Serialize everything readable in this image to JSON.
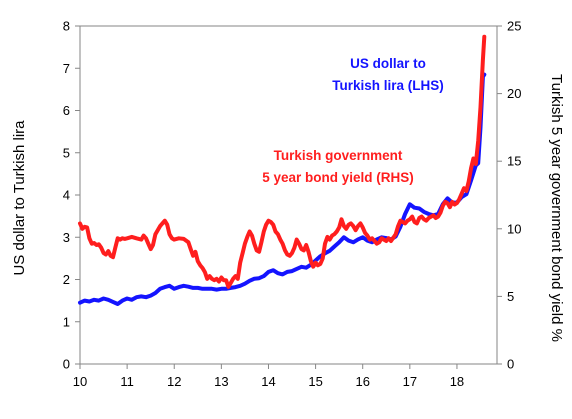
{
  "chart_data": {
    "type": "line",
    "title": "",
    "xlabel": "",
    "ylabel_left": "US dollar to Turkish lira",
    "ylabel_right": "Turkish 5 year government bond yield %",
    "xlim": [
      10,
      18.85
    ],
    "ylim_left": [
      0,
      8
    ],
    "ylim_right": [
      0,
      25
    ],
    "x_ticks": [
      "10",
      "11",
      "12",
      "13",
      "14",
      "15",
      "16",
      "17",
      "18"
    ],
    "y_left_ticks": [
      "0",
      "1",
      "2",
      "3",
      "4",
      "5",
      "6",
      "7",
      "8"
    ],
    "y_right_ticks": [
      "0",
      "5",
      "10",
      "15",
      "20",
      "25"
    ],
    "grid": false,
    "legend": "none",
    "annotations": [
      {
        "text": "US dollar to",
        "color": "#1414ff",
        "series": "usd_try"
      },
      {
        "text": "Turkish lira (LHS)",
        "color": "#1414ff",
        "series": "usd_try"
      },
      {
        "text": "Turkish  government",
        "color": "#ff1e1e",
        "series": "bond_yield"
      },
      {
        "text": "5 year bond yield  (RHS)",
        "color": "#ff1e1e",
        "series": "bond_yield"
      }
    ],
    "series": [
      {
        "key": "usd_try",
        "axis": "left",
        "color": "#1414ff",
        "points": [
          [
            10.0,
            1.45
          ],
          [
            10.1,
            1.5
          ],
          [
            10.2,
            1.48
          ],
          [
            10.3,
            1.52
          ],
          [
            10.4,
            1.5
          ],
          [
            10.5,
            1.55
          ],
          [
            10.6,
            1.52
          ],
          [
            10.7,
            1.47
          ],
          [
            10.8,
            1.42
          ],
          [
            10.9,
            1.5
          ],
          [
            11.0,
            1.55
          ],
          [
            11.1,
            1.52
          ],
          [
            11.2,
            1.58
          ],
          [
            11.3,
            1.6
          ],
          [
            11.4,
            1.58
          ],
          [
            11.5,
            1.62
          ],
          [
            11.6,
            1.68
          ],
          [
            11.7,
            1.78
          ],
          [
            11.8,
            1.82
          ],
          [
            11.9,
            1.85
          ],
          [
            12.0,
            1.78
          ],
          [
            12.1,
            1.82
          ],
          [
            12.2,
            1.85
          ],
          [
            12.3,
            1.83
          ],
          [
            12.4,
            1.8
          ],
          [
            12.5,
            1.8
          ],
          [
            12.6,
            1.78
          ],
          [
            12.7,
            1.78
          ],
          [
            12.8,
            1.78
          ],
          [
            12.9,
            1.76
          ],
          [
            13.0,
            1.78
          ],
          [
            13.1,
            1.78
          ],
          [
            13.2,
            1.8
          ],
          [
            13.3,
            1.82
          ],
          [
            13.4,
            1.85
          ],
          [
            13.5,
            1.9
          ],
          [
            13.6,
            1.97
          ],
          [
            13.7,
            2.02
          ],
          [
            13.8,
            2.03
          ],
          [
            13.9,
            2.08
          ],
          [
            14.0,
            2.18
          ],
          [
            14.1,
            2.22
          ],
          [
            14.2,
            2.15
          ],
          [
            14.3,
            2.12
          ],
          [
            14.4,
            2.18
          ],
          [
            14.5,
            2.2
          ],
          [
            14.6,
            2.25
          ],
          [
            14.7,
            2.3
          ],
          [
            14.8,
            2.28
          ],
          [
            14.9,
            2.35
          ],
          [
            15.0,
            2.45
          ],
          [
            15.1,
            2.55
          ],
          [
            15.2,
            2.62
          ],
          [
            15.3,
            2.68
          ],
          [
            15.4,
            2.78
          ],
          [
            15.5,
            2.88
          ],
          [
            15.6,
            3.0
          ],
          [
            15.7,
            2.92
          ],
          [
            15.8,
            2.88
          ],
          [
            15.9,
            2.95
          ],
          [
            16.0,
            3.0
          ],
          [
            16.1,
            2.92
          ],
          [
            16.2,
            2.88
          ],
          [
            16.3,
            2.95
          ],
          [
            16.4,
            3.0
          ],
          [
            16.5,
            2.98
          ],
          [
            16.6,
            2.95
          ],
          [
            16.7,
            3.02
          ],
          [
            16.8,
            3.25
          ],
          [
            16.9,
            3.55
          ],
          [
            17.0,
            3.78
          ],
          [
            17.1,
            3.7
          ],
          [
            17.2,
            3.68
          ],
          [
            17.3,
            3.6
          ],
          [
            17.4,
            3.55
          ],
          [
            17.5,
            3.52
          ],
          [
            17.6,
            3.55
          ],
          [
            17.7,
            3.78
          ],
          [
            17.8,
            3.92
          ],
          [
            17.9,
            3.82
          ],
          [
            18.0,
            3.82
          ],
          [
            18.1,
            3.95
          ],
          [
            18.2,
            4.02
          ],
          [
            18.3,
            4.35
          ],
          [
            18.4,
            4.7
          ],
          [
            18.45,
            4.75
          ],
          [
            18.5,
            5.6
          ],
          [
            18.55,
            6.8
          ],
          [
            18.58,
            6.85
          ]
        ]
      },
      {
        "key": "bond_yield",
        "axis": "right",
        "color": "#ff1e1e",
        "points": [
          [
            10.0,
            10.4
          ],
          [
            10.05,
            10.0
          ],
          [
            10.1,
            10.15
          ],
          [
            10.15,
            10.1
          ],
          [
            10.2,
            9.3
          ],
          [
            10.25,
            8.9
          ],
          [
            10.3,
            8.95
          ],
          [
            10.35,
            8.8
          ],
          [
            10.4,
            8.85
          ],
          [
            10.45,
            8.6
          ],
          [
            10.5,
            8.2
          ],
          [
            10.55,
            8.1
          ],
          [
            10.6,
            8.35
          ],
          [
            10.65,
            8.0
          ],
          [
            10.7,
            7.9
          ],
          [
            10.75,
            8.6
          ],
          [
            10.8,
            9.3
          ],
          [
            10.85,
            9.2
          ],
          [
            10.9,
            9.3
          ],
          [
            10.95,
            9.25
          ],
          [
            11.0,
            9.3
          ],
          [
            11.1,
            9.4
          ],
          [
            11.2,
            9.3
          ],
          [
            11.3,
            9.2
          ],
          [
            11.35,
            9.5
          ],
          [
            11.4,
            9.3
          ],
          [
            11.45,
            8.9
          ],
          [
            11.5,
            8.5
          ],
          [
            11.55,
            8.8
          ],
          [
            11.6,
            9.6
          ],
          [
            11.7,
            10.2
          ],
          [
            11.8,
            10.6
          ],
          [
            11.85,
            10.3
          ],
          [
            11.9,
            9.6
          ],
          [
            11.95,
            9.3
          ],
          [
            12.0,
            9.2
          ],
          [
            12.1,
            9.3
          ],
          [
            12.2,
            9.25
          ],
          [
            12.3,
            9.0
          ],
          [
            12.35,
            8.5
          ],
          [
            12.4,
            8.0
          ],
          [
            12.45,
            8.3
          ],
          [
            12.5,
            7.6
          ],
          [
            12.55,
            7.3
          ],
          [
            12.6,
            7.1
          ],
          [
            12.65,
            6.8
          ],
          [
            12.7,
            6.3
          ],
          [
            12.75,
            6.5
          ],
          [
            12.8,
            6.3
          ],
          [
            12.85,
            6.2
          ],
          [
            12.9,
            6.3
          ],
          [
            12.95,
            6.1
          ],
          [
            13.0,
            6.4
          ],
          [
            13.05,
            6.2
          ],
          [
            13.1,
            6.2
          ],
          [
            13.15,
            5.7
          ],
          [
            13.2,
            6.0
          ],
          [
            13.25,
            6.3
          ],
          [
            13.3,
            6.5
          ],
          [
            13.35,
            6.3
          ],
          [
            13.4,
            7.5
          ],
          [
            13.45,
            8.2
          ],
          [
            13.5,
            8.9
          ],
          [
            13.55,
            9.4
          ],
          [
            13.6,
            9.8
          ],
          [
            13.65,
            9.5
          ],
          [
            13.7,
            8.9
          ],
          [
            13.75,
            8.4
          ],
          [
            13.8,
            8.3
          ],
          [
            13.85,
            9.0
          ],
          [
            13.9,
            9.8
          ],
          [
            13.95,
            10.3
          ],
          [
            14.0,
            10.6
          ],
          [
            14.05,
            10.5
          ],
          [
            14.1,
            10.3
          ],
          [
            14.15,
            9.8
          ],
          [
            14.2,
            9.6
          ],
          [
            14.25,
            9.2
          ],
          [
            14.3,
            8.9
          ],
          [
            14.35,
            8.4
          ],
          [
            14.4,
            8.1
          ],
          [
            14.45,
            8.0
          ],
          [
            14.5,
            8.2
          ],
          [
            14.55,
            8.6
          ],
          [
            14.6,
            9.2
          ],
          [
            14.65,
            8.9
          ],
          [
            14.7,
            8.5
          ],
          [
            14.75,
            8.4
          ],
          [
            14.8,
            8.8
          ],
          [
            14.85,
            8.3
          ],
          [
            14.9,
            7.6
          ],
          [
            14.95,
            7.2
          ],
          [
            15.0,
            7.5
          ],
          [
            15.05,
            7.3
          ],
          [
            15.1,
            7.4
          ],
          [
            15.15,
            7.8
          ],
          [
            15.2,
            8.9
          ],
          [
            15.25,
            9.4
          ],
          [
            15.3,
            9.2
          ],
          [
            15.35,
            9.5
          ],
          [
            15.4,
            9.6
          ],
          [
            15.45,
            9.8
          ],
          [
            15.5,
            10.1
          ],
          [
            15.55,
            10.7
          ],
          [
            15.6,
            10.2
          ],
          [
            15.65,
            10.0
          ],
          [
            15.7,
            10.3
          ],
          [
            15.75,
            10.4
          ],
          [
            15.8,
            10.2
          ],
          [
            15.85,
            9.9
          ],
          [
            15.9,
            10.2
          ],
          [
            15.95,
            10.4
          ],
          [
            16.0,
            10.1
          ],
          [
            16.05,
            9.7
          ],
          [
            16.1,
            9.5
          ],
          [
            16.15,
            9.2
          ],
          [
            16.2,
            9.3
          ],
          [
            16.25,
            9.1
          ],
          [
            16.3,
            8.9
          ],
          [
            16.35,
            9.0
          ],
          [
            16.4,
            9.3
          ],
          [
            16.45,
            9.2
          ],
          [
            16.5,
            9.1
          ],
          [
            16.55,
            9.3
          ],
          [
            16.6,
            9.1
          ],
          [
            16.7,
            9.6
          ],
          [
            16.75,
            10.2
          ],
          [
            16.8,
            10.6
          ],
          [
            16.85,
            10.5
          ],
          [
            16.9,
            10.4
          ],
          [
            16.95,
            10.6
          ],
          [
            17.0,
            10.7
          ],
          [
            17.05,
            10.9
          ],
          [
            17.1,
            10.5
          ],
          [
            17.15,
            10.4
          ],
          [
            17.2,
            10.8
          ],
          [
            17.25,
            10.9
          ],
          [
            17.3,
            10.7
          ],
          [
            17.35,
            10.6
          ],
          [
            17.4,
            10.8
          ],
          [
            17.5,
            11.0
          ],
          [
            17.55,
            10.8
          ],
          [
            17.6,
            10.9
          ],
          [
            17.65,
            11.2
          ],
          [
            17.7,
            11.7
          ],
          [
            17.75,
            12.0
          ],
          [
            17.8,
            11.9
          ],
          [
            17.85,
            11.6
          ],
          [
            17.9,
            12.0
          ],
          [
            17.95,
            11.8
          ],
          [
            18.0,
            11.9
          ],
          [
            18.05,
            12.2
          ],
          [
            18.1,
            12.6
          ],
          [
            18.15,
            13.0
          ],
          [
            18.2,
            12.8
          ],
          [
            18.25,
            13.5
          ],
          [
            18.3,
            14.5
          ],
          [
            18.35,
            15.2
          ],
          [
            18.4,
            14.8
          ],
          [
            18.45,
            16.5
          ],
          [
            18.5,
            19.0
          ],
          [
            18.55,
            22.5
          ],
          [
            18.58,
            24.2
          ]
        ]
      }
    ]
  }
}
